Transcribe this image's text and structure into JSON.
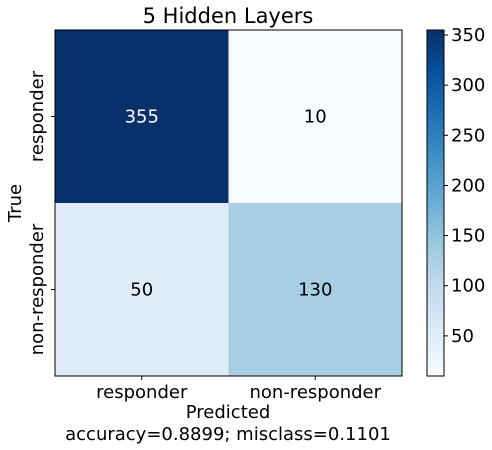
{
  "chart_data": {
    "type": "heatmap",
    "title": "5 Hidden Layers",
    "ylabel": "True",
    "xlabel": "Predicted",
    "subtitle": "accuracy=0.8899; misclass=0.1101",
    "x_categories": [
      "responder",
      "non-responder"
    ],
    "y_categories": [
      "responder",
      "non-responder"
    ],
    "values": [
      [
        355,
        10
      ],
      [
        50,
        130
      ]
    ],
    "colormap": "Blues",
    "colorbar": {
      "ticks": [
        50,
        100,
        150,
        200,
        250,
        300,
        350
      ],
      "range": [
        10,
        355
      ]
    }
  },
  "colors": {
    "cmap_stops": [
      "#f7fbff",
      "#deebf7",
      "#c6dbef",
      "#9ecae1",
      "#6baed6",
      "#4292c6",
      "#2171b5",
      "#08519c",
      "#08306b"
    ],
    "text_dark": "#000000",
    "text_light": "#ffffff"
  }
}
